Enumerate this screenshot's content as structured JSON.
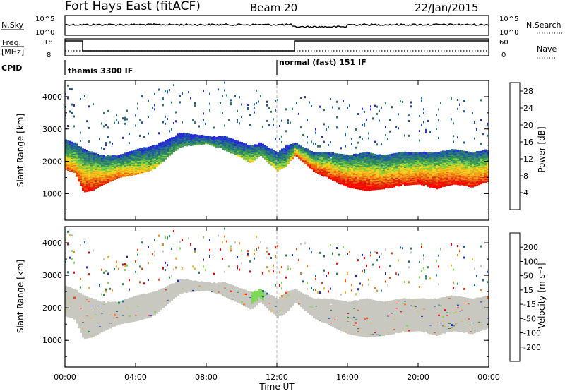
{
  "header": {
    "station": "Fort Hays East (fitACF)",
    "beam": "Beam 20",
    "date": "22/Jan/2015"
  },
  "summary_panel": {
    "nsky_label": "N.Sky",
    "nsky_ticks": [
      "10^5",
      "10^0"
    ],
    "nsearch_label": "N.Search",
    "nsearch_ticks": [
      "10^5",
      "10^0"
    ],
    "freq_label": "Freq.",
    "freq_unit": "[MHz]",
    "freq_ticks": [
      "18",
      "8"
    ],
    "nave_label": "Nave",
    "nave_ticks": [
      "60",
      "0"
    ],
    "cpid_label": "CPID",
    "cpid_segments": [
      {
        "label": "themis 3300 IF",
        "start_hour": 0,
        "end_hour": 12
      },
      {
        "label": "normal (fast) 151 IF",
        "start_hour": 12,
        "end_hour": 24
      }
    ],
    "freq_trace": [
      {
        "start_hour": 0,
        "end_hour": 1,
        "level": "high"
      },
      {
        "start_hour": 1,
        "end_hour": 13,
        "level": "low"
      },
      {
        "start_hour": 13,
        "end_hour": 24,
        "level": "high"
      }
    ]
  },
  "colors": {
    "power_scale": [
      "#2a2ad8",
      "#1f5aa8",
      "#2e7f6a",
      "#3f9d5a",
      "#7fd03f",
      "#f2d21c",
      "#f3a81c",
      "#f06a10",
      "#e02a08",
      "#ff0000"
    ],
    "velocity_scale": [
      "#1a2cc8",
      "#1f6e96",
      "#2a8f4c",
      "#7fd857",
      "#c8c8c0",
      "#f0b830",
      "#f08020",
      "#f04a10",
      "#ff0000"
    ],
    "ground_scatter": "#c8c8c0"
  },
  "chart_data": [
    {
      "type": "heatmap",
      "name": "power",
      "ylabel": "Slant Range [km]",
      "xlabel": "Time UT",
      "x_ticks": [
        "00:00",
        "04:00",
        "08:00",
        "12:00",
        "16:00",
        "20:00",
        "00:00"
      ],
      "y_ticks": [
        1000,
        2000,
        3000,
        4000
      ],
      "xlim_hours": [
        0,
        24
      ],
      "ylim_km": [
        180,
        4500
      ],
      "colorbar": {
        "label": "Power [dB]",
        "ticks": [
          4,
          8,
          12,
          16,
          20,
          24,
          28
        ],
        "range": [
          0,
          30
        ]
      },
      "scatter_band": {
        "hours": [
          0,
          0.5,
          1,
          1.5,
          2,
          3,
          4,
          5,
          5.8,
          6.5,
          8,
          9,
          10,
          10.5,
          11,
          12,
          12.5,
          13,
          14,
          15,
          16,
          17,
          18,
          19,
          20,
          21,
          22,
          23,
          24
        ],
        "lower_km": [
          1800,
          1700,
          1100,
          1150,
          1300,
          1550,
          1650,
          1800,
          2200,
          2500,
          2600,
          2400,
          2150,
          2000,
          2250,
          1750,
          1900,
          2250,
          1750,
          1500,
          1250,
          1150,
          1200,
          1300,
          1350,
          1200,
          1350,
          1250,
          1450
        ],
        "upper_km": [
          2700,
          2600,
          2400,
          2300,
          2200,
          2200,
          2400,
          2500,
          2700,
          2900,
          2800,
          2800,
          2600,
          2500,
          2600,
          2300,
          2500,
          2600,
          2300,
          2300,
          2200,
          2300,
          2200,
          2300,
          2300,
          2300,
          2400,
          2300,
          2400
        ],
        "peak_power_db": [
          22,
          24,
          28,
          28,
          26,
          24,
          20,
          16,
          12,
          10,
          12,
          10,
          14,
          18,
          12,
          18,
          14,
          24,
          28,
          28,
          30,
          30,
          28,
          28,
          28,
          30,
          28,
          28,
          26
        ]
      }
    },
    {
      "type": "heatmap",
      "name": "velocity",
      "ylabel": "Slant Range [km]",
      "xlabel": "Time UT",
      "x_ticks": [
        "00:00",
        "04:00",
        "08:00",
        "12:00",
        "16:00",
        "20:00",
        "00:00"
      ],
      "y_ticks": [
        1000,
        2000,
        3000,
        4000
      ],
      "xlim_hours": [
        0,
        24
      ],
      "ylim_km": [
        180,
        4500
      ],
      "colorbar": {
        "label": "Velocity [m s⁻¹]",
        "ticks": [
          200,
          100,
          50,
          15,
          -15,
          -50,
          -100,
          -200
        ],
        "range": [
          -250,
          250
        ]
      },
      "dominant_class": "ground scatter (gray, -15 to 15)"
    }
  ]
}
